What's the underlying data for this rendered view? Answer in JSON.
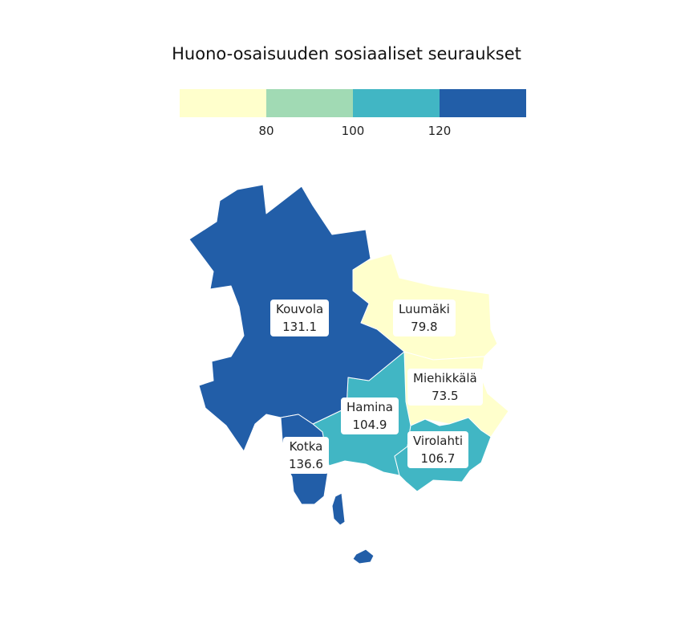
{
  "title": "Huono-osaisuuden sosiaaliset seuraukset",
  "legend": {
    "colors": [
      "#ffffcc",
      "#a1dab4",
      "#41b6c4",
      "#225ea8"
    ],
    "ticks": [
      "80",
      "100",
      "120"
    ]
  },
  "regions": [
    {
      "name": "Kouvola",
      "value": "131.1",
      "color": "#225ea8"
    },
    {
      "name": "Luumäki",
      "value": "79.8",
      "color": "#ffffcc"
    },
    {
      "name": "Miehikkälä",
      "value": "73.5",
      "color": "#ffffcc"
    },
    {
      "name": "Hamina",
      "value": "104.9",
      "color": "#41b6c4"
    },
    {
      "name": "Virolahti",
      "value": "106.7",
      "color": "#41b6c4"
    },
    {
      "name": "Kotka",
      "value": "136.6",
      "color": "#225ea8"
    }
  ]
}
